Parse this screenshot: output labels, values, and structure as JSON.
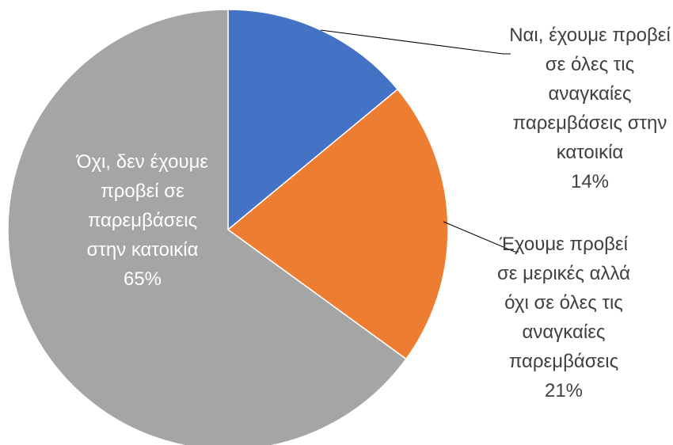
{
  "chart_data": {
    "type": "pie",
    "categories": [
      "Ναι, έχουμε προβεί σε όλες τις αναγκαίες παρεμβάσεις στην κατοικία",
      "Έχουμε προβεί σε μερικές αλλά όχι σε όλες τις αναγκαίες παρεμβάσεις",
      "Όχι, δεν έχουμε προβεί σε παρεμβάσεις στην κατοικία"
    ],
    "values": [
      14,
      21,
      65
    ],
    "value_labels": [
      "14%",
      "21%",
      "65%"
    ],
    "colors": [
      "#4472c4",
      "#ed7d31",
      "#a5a5a5"
    ]
  }
}
